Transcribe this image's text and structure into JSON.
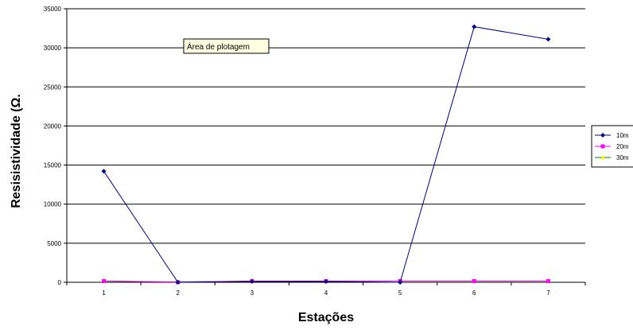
{
  "chart_data": {
    "type": "line",
    "categories": [
      "1",
      "2",
      "3",
      "4",
      "5",
      "6",
      "7"
    ],
    "series": [
      {
        "name": "10m",
        "values": [
          14200,
          0,
          100,
          100,
          0,
          32700,
          31100
        ],
        "color": "#000080",
        "marker": "diamond"
      },
      {
        "name": "20m",
        "values": [
          150,
          20,
          150,
          150,
          150,
          150,
          150
        ],
        "color": "#FF00FF",
        "marker": "square"
      },
      {
        "name": "30m",
        "values": [
          150,
          50,
          150,
          150,
          150,
          150,
          150
        ],
        "color": "#FFFF00",
        "line_color": "#008000",
        "marker": "triangle"
      }
    ],
    "xlabel": "Estações",
    "ylabel": "Resisistividade (Ω.",
    "ylim": [
      0,
      35000
    ],
    "yticks": [
      0,
      5000,
      10000,
      15000,
      20000,
      25000,
      30000,
      35000
    ],
    "grid": true,
    "legend_position": "right",
    "tooltip": "Área de plotagem"
  }
}
